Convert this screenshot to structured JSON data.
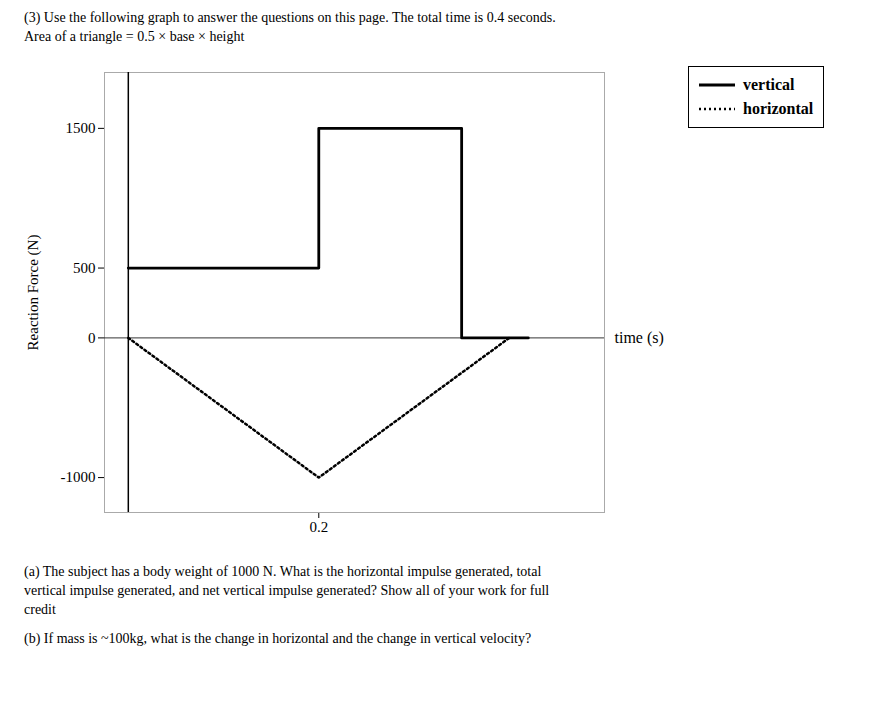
{
  "chart_data": {
    "type": "line",
    "title": "(3) Use the following graph to answer the questions on this page. The total time is 0.4 seconds.",
    "subtitle": "Area of a triangle = 0.5 × base × height",
    "xlabel": "time (s)",
    "ylabel": "Reaction Force (N)",
    "xlim": [
      -0.025,
      0.5
    ],
    "ylim": [
      -1250,
      1900
    ],
    "xticks": [
      0.2
    ],
    "yticks": [
      -1000,
      0,
      500,
      1500
    ],
    "grid": false,
    "legend": "right",
    "hlines": [
      0
    ],
    "vlines": [
      0
    ],
    "series": [
      {
        "name": "vertical",
        "color": "black",
        "line_style": "solid",
        "x": [
          0.0,
          0.2,
          0.2,
          0.35,
          0.35,
          0.42
        ],
        "values": [
          500,
          500,
          1500,
          1500,
          0,
          0
        ]
      },
      {
        "name": "horizontal",
        "color": "black",
        "line_style": "dotted",
        "x": [
          0.0,
          0.2,
          0.4
        ],
        "values": [
          0,
          -1000,
          0
        ]
      }
    ],
    "annotations": [
      "(a) The subject has a body weight of 1000 N. What is the horizontal impulse generated, total\nvertical impulse generated, and net vertical impulse generated? Show all of your work for full\ncredit",
      "(b) If mass is ~100kg, what is the change in horizontal and the change in vertical velocity?"
    ]
  }
}
